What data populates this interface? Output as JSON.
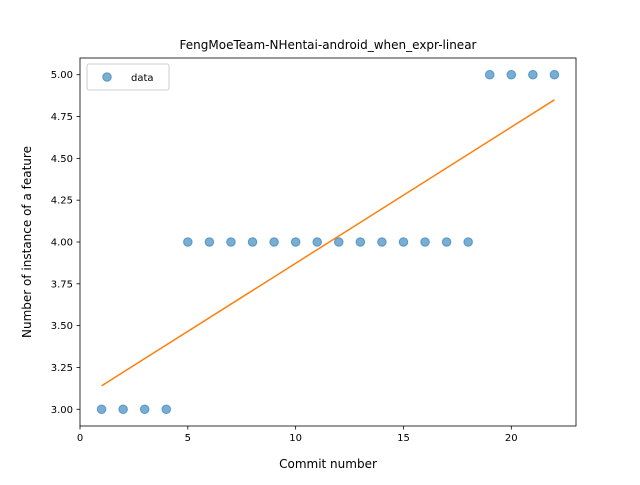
{
  "chart_data": {
    "type": "scatter",
    "title": "FengMoeTeam-NHentai-android_when_expr-linear",
    "xlabel": "Commit number",
    "ylabel": "Number of instance of a feature",
    "xlim": [
      0,
      23
    ],
    "ylim": [
      2.9,
      5.1
    ],
    "xticks": [
      0,
      5,
      10,
      15,
      20
    ],
    "yticks": [
      3.0,
      3.25,
      3.5,
      3.75,
      4.0,
      4.25,
      4.5,
      4.75,
      5.0
    ],
    "xtick_labels": [
      "0",
      "5",
      "10",
      "15",
      "20"
    ],
    "ytick_labels": [
      "3.00",
      "3.25",
      "3.50",
      "3.75",
      "4.00",
      "4.25",
      "4.50",
      "4.75",
      "5.00"
    ],
    "grid": false,
    "legend_position": "top-left",
    "series": [
      {
        "name": "data",
        "kind": "scatter",
        "color": "#1f77b4",
        "x": [
          1,
          2,
          3,
          4,
          5,
          6,
          7,
          8,
          9,
          10,
          11,
          12,
          13,
          14,
          15,
          16,
          17,
          18,
          19,
          20,
          21,
          22
        ],
        "y": [
          3,
          3,
          3,
          3,
          4,
          4,
          4,
          4,
          4,
          4,
          4,
          4,
          4,
          4,
          4,
          4,
          4,
          4,
          5,
          5,
          5,
          5
        ]
      },
      {
        "kind": "line",
        "color": "#ff7f0e",
        "x": [
          1,
          22
        ],
        "y": [
          3.14,
          4.85
        ]
      }
    ]
  }
}
